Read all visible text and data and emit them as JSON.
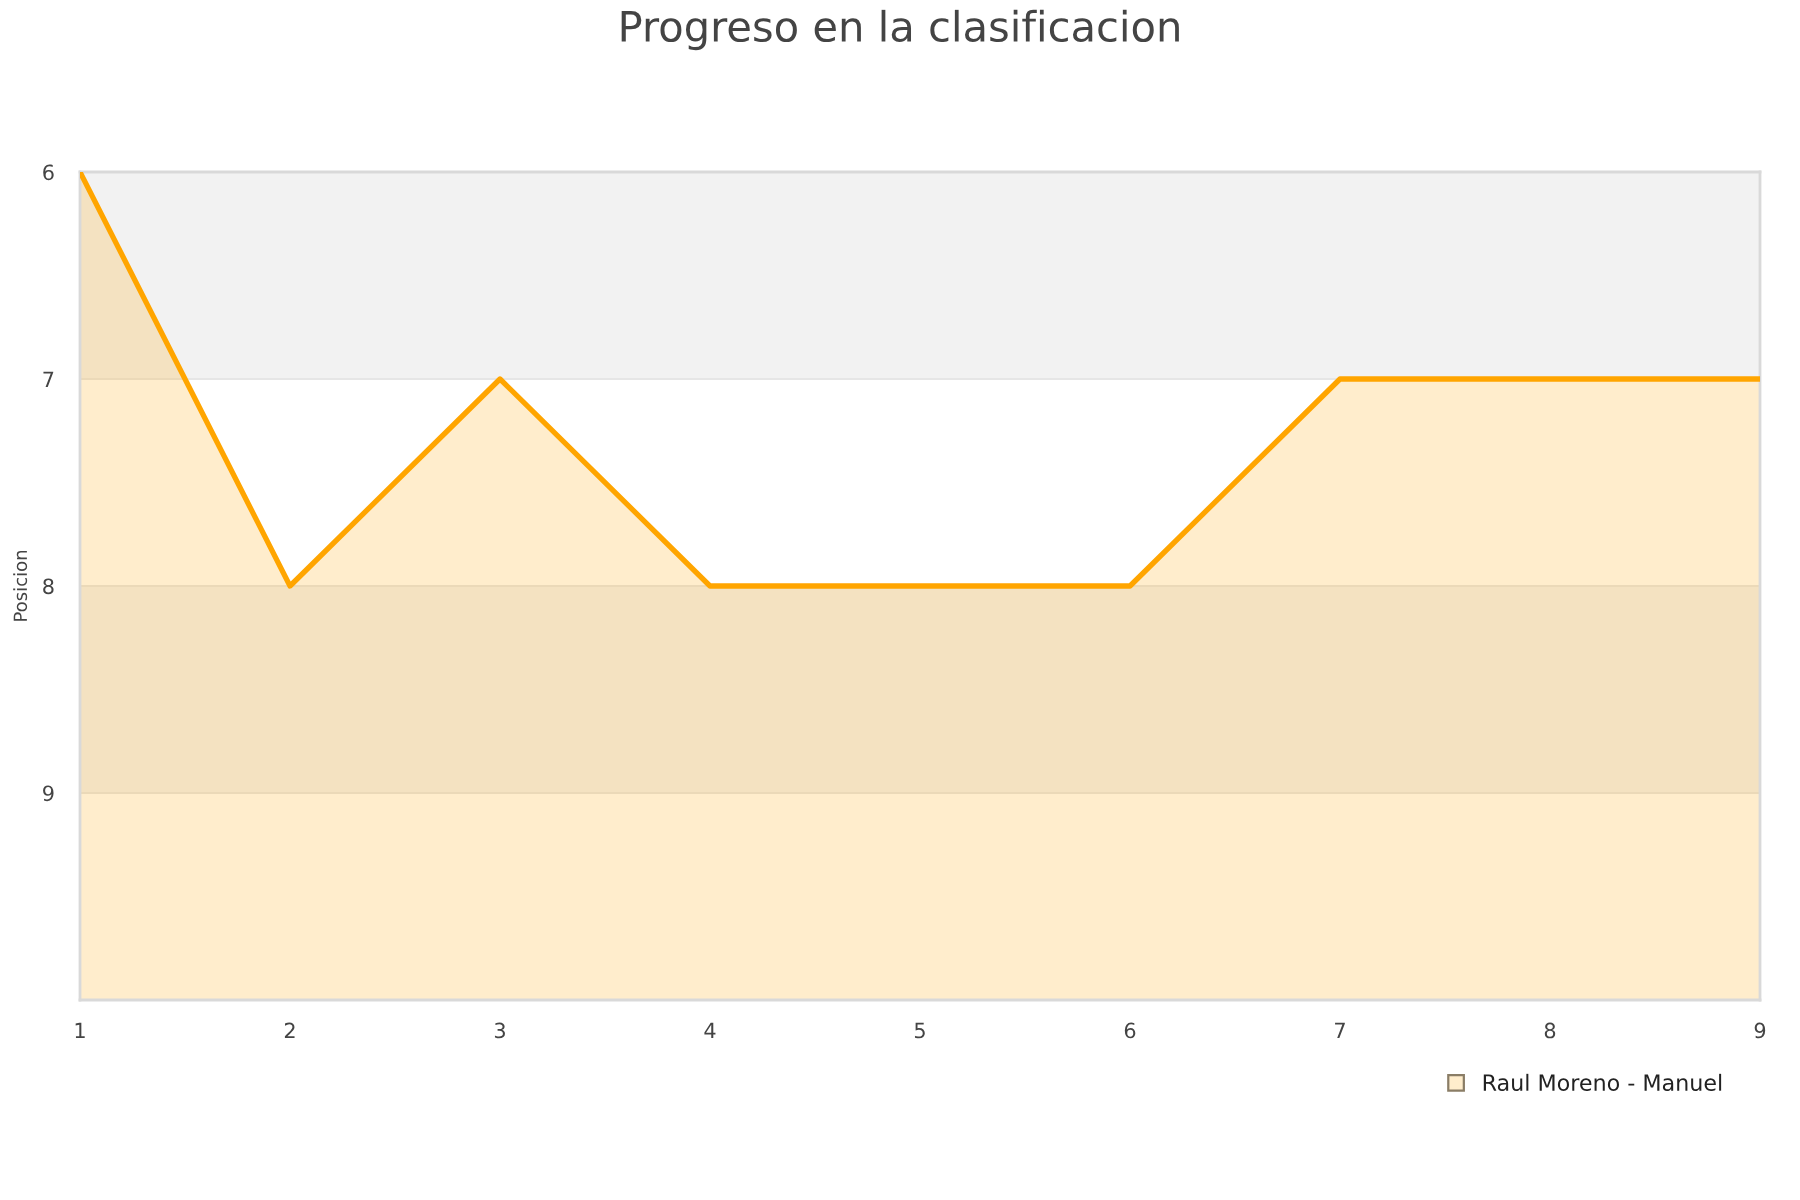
{
  "chart_data": {
    "type": "area",
    "title": "Progreso en la clasificacion",
    "ylabel": "Posicion",
    "x": [
      1,
      2,
      3,
      4,
      5,
      6,
      7,
      8,
      9
    ],
    "series": [
      {
        "name": "Raul Moreno - Manuel",
        "color": "#ffa500",
        "values": [
          6,
          8,
          7,
          8,
          8,
          8,
          7,
          7,
          7
        ]
      }
    ],
    "xlim": [
      1,
      9
    ],
    "xticks": [
      1,
      2,
      3,
      4,
      5,
      6,
      7,
      8,
      9
    ],
    "ylim": [
      10,
      6
    ],
    "yticks": [
      6,
      7,
      8,
      9
    ],
    "grid": "y",
    "legend": "bottom right",
    "line_style": "solid",
    "bands": [
      {
        "axis": "y",
        "from": 6,
        "to": 7,
        "color": "#f2f2f2"
      },
      {
        "axis": "y",
        "from": 8,
        "to": 9,
        "color": "#f2f2f2"
      }
    ]
  }
}
